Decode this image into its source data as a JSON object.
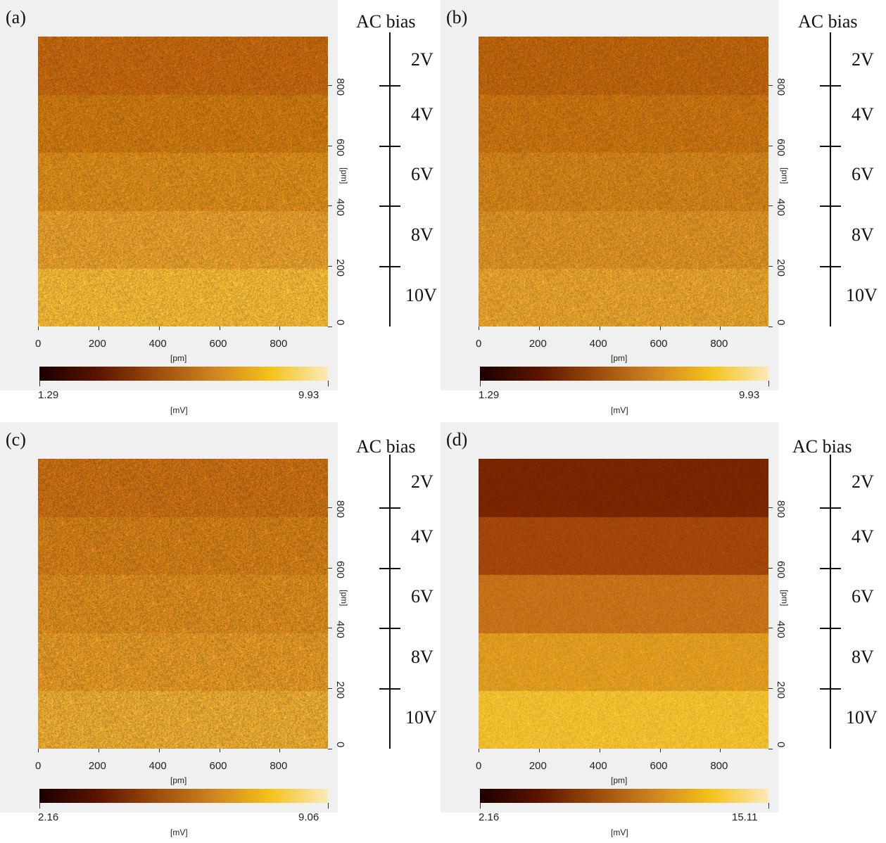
{
  "bias_title": "AC bias",
  "axis_unit": "[pm]",
  "colorbar_unit": "[mV]",
  "x_ticks": [
    "0",
    "200",
    "400",
    "600",
    "800"
  ],
  "y_ticks": [
    "0",
    "200",
    "400",
    "600",
    "800"
  ],
  "bias_levels": [
    "2V",
    "4V",
    "6V",
    "8V",
    "10V"
  ],
  "colormap": [
    "#1a0000",
    "#5a1400",
    "#9a4a0c",
    "#cf8220",
    "#f4c21a",
    "#fbe9b8"
  ],
  "panels": [
    {
      "letter": "(a)",
      "cb_min": "1.29",
      "cb_max": "9.93",
      "band_colors": [
        "#b8610e",
        "#c0710f",
        "#cc8318",
        "#d89528",
        "#e7ad32"
      ],
      "noise": 0.13
    },
    {
      "letter": "(b)",
      "cb_min": "1.29",
      "cb_max": "9.93",
      "band_colors": [
        "#b4600c",
        "#bf6e10",
        "#c77c18",
        "#d08a22",
        "#db9a2a"
      ],
      "noise": 0.12
    },
    {
      "letter": "(c)",
      "cb_min": "2.16",
      "cb_max": "9.06",
      "band_colors": [
        "#bb6812",
        "#c47616",
        "#cc821c",
        "#d48e22",
        "#dea02e"
      ],
      "noise": 0.14
    },
    {
      "letter": "(d)",
      "cb_min": "2.16",
      "cb_max": "15.11",
      "band_colors": [
        "#7a2500",
        "#a2450b",
        "#c57018",
        "#dd9a1f",
        "#efbd2e"
      ],
      "noise": 0.07
    }
  ]
}
